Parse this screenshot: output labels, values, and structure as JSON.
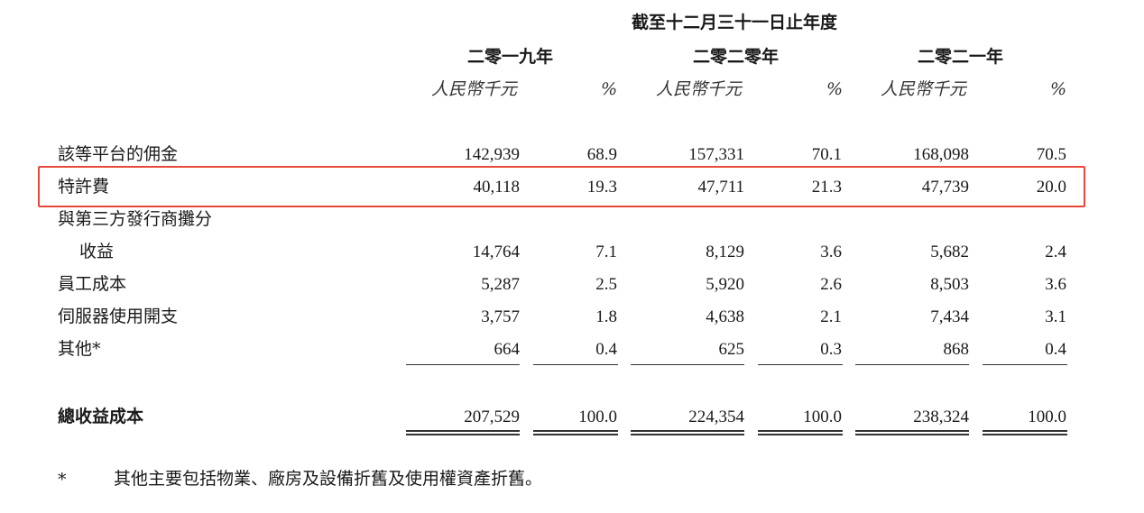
{
  "header": {
    "period_title": "截至十二月三十一日止年度",
    "years": [
      "二零一九年",
      "二零二零年",
      "二零二一年"
    ],
    "unit_rmb": "人民幣千元",
    "unit_pct": "%"
  },
  "rows": [
    {
      "label": "該等平台的佣金",
      "values": [
        "142,939",
        "68.9",
        "157,331",
        "70.1",
        "168,098",
        "70.5"
      ]
    },
    {
      "label": "特許費",
      "values": [
        "40,118",
        "19.3",
        "47,711",
        "21.3",
        "47,739",
        "20.0"
      ],
      "highlighted": true
    },
    {
      "label": "與第三方發行商攤分",
      "values": []
    },
    {
      "label": "收益",
      "values": [
        "14,764",
        "7.1",
        "8,129",
        "3.6",
        "5,682",
        "2.4"
      ]
    },
    {
      "label": "員工成本",
      "values": [
        "5,287",
        "2.5",
        "5,920",
        "2.6",
        "8,503",
        "3.6"
      ]
    },
    {
      "label": "伺服器使用開支",
      "values": [
        "3,757",
        "1.8",
        "4,638",
        "2.1",
        "7,434",
        "3.1"
      ]
    },
    {
      "label": "其他*",
      "values": [
        "664",
        "0.4",
        "625",
        "0.3",
        "868",
        "0.4"
      ]
    }
  ],
  "total": {
    "label": "總收益成本",
    "values": [
      "207,529",
      "100.0",
      "224,354",
      "100.0",
      "238,324",
      "100.0"
    ]
  },
  "footnote": {
    "marker": "*",
    "text": "其他主要包括物業、廠房及設備折舊及使用權資產折舊。"
  },
  "colors": {
    "highlight_border": "#e8483a",
    "text": "#1a1a1a"
  }
}
